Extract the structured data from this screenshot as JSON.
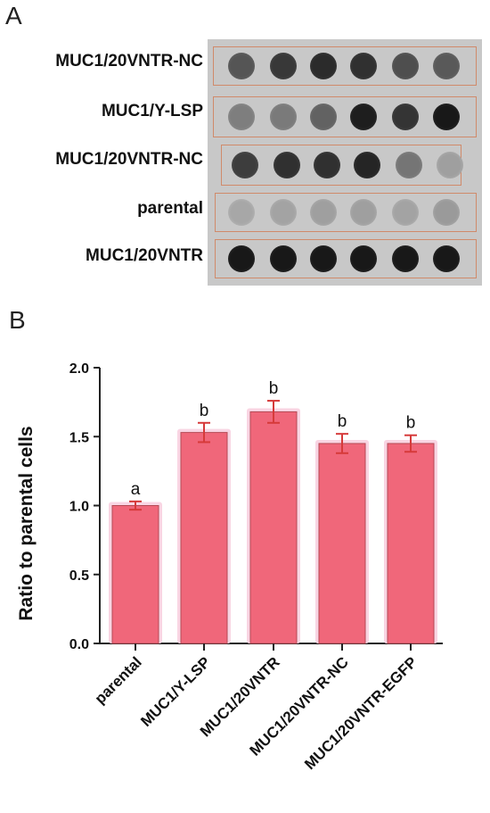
{
  "panel_a": {
    "label": "A",
    "rows": [
      {
        "label": "MUC1/20VNTR-NC",
        "intensities": [
          0.62,
          0.78,
          0.85,
          0.82,
          0.66,
          0.6
        ]
      },
      {
        "label": "MUC1/Y-LSP",
        "intensities": [
          0.4,
          0.42,
          0.55,
          0.92,
          0.8,
          0.95
        ]
      },
      {
        "label": "MUC1/20VNTR-NC",
        "intensities": [
          0.75,
          0.82,
          0.82,
          0.88,
          0.45,
          0.22
        ]
      },
      {
        "label": "parental",
        "intensities": [
          0.18,
          0.2,
          0.22,
          0.22,
          0.2,
          0.25
        ]
      },
      {
        "label": "MUC1/20VNTR",
        "intensities": [
          0.95,
          0.95,
          0.95,
          0.95,
          0.95,
          0.95
        ]
      }
    ]
  },
  "panel_b": {
    "label": "B"
  },
  "chart_data": {
    "type": "bar",
    "categories": [
      "parental",
      "MUC1/Y-LSP",
      "MUC1/20VNTR",
      "MUC1/20VNTR-NC",
      "MUC1/20VNTR-EGFP"
    ],
    "values": [
      1.0,
      1.53,
      1.68,
      1.45,
      1.45
    ],
    "errors": [
      0.03,
      0.07,
      0.08,
      0.07,
      0.06
    ],
    "significance": [
      "a",
      "b",
      "b",
      "b",
      "b"
    ],
    "ylabel": "Ratio to parental cells",
    "xlabel": "",
    "title": "",
    "ylim": [
      0,
      2.0
    ],
    "yticks": [
      "0.0",
      "0.5",
      "1.0",
      "1.5",
      "2.0"
    ],
    "colors": {
      "bar": "#f0677a",
      "bar_edge": "#b54a55",
      "error": "#d63a3a",
      "glow": "#f9d5e3"
    }
  }
}
